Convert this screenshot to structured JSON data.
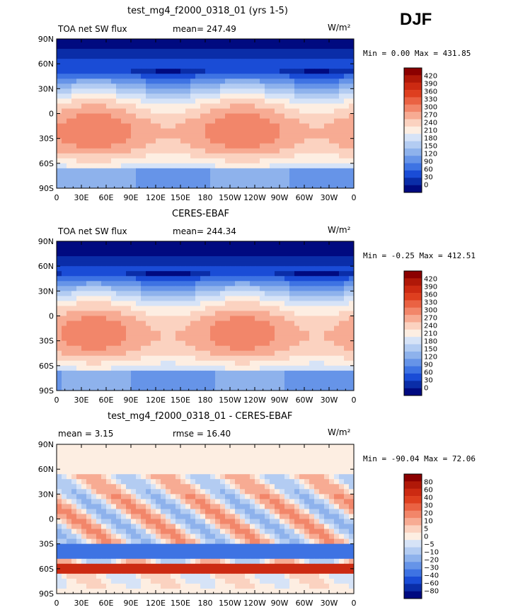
{
  "header": {
    "season": "DJF"
  },
  "panels": [
    {
      "title": "test_mg4_f2000_0318_01 (yrs 1-5)",
      "variable": "TOA net SW flux",
      "stat1": "mean= 247.49",
      "stat2": "",
      "units": "W/m²",
      "minmax": "Min =    0.00 Max = 431.85"
    },
    {
      "title": "CERES-EBAF",
      "variable": "TOA net SW flux",
      "stat1": "mean= 244.34",
      "stat2": "",
      "units": "W/m²",
      "minmax": "Min =  -0.25 Max = 412.51"
    },
    {
      "title": "test_mg4_f2000_0318_01 - CERES-EBAF",
      "variable": "",
      "stat1": "mean =    3.15",
      "stat2": "rmse =   16.40",
      "units": "W/m²",
      "minmax": "Min = -90.04 Max =  72.06"
    }
  ],
  "chart_data": [
    {
      "type": "heatmap",
      "title": "test_mg4_f2000_0318_01 (yrs 1-5)",
      "x_ticks": [
        "0",
        "30E",
        "60E",
        "90E",
        "120E",
        "150E",
        "180",
        "150W",
        "120W",
        "90W",
        "60W",
        "30W",
        "0"
      ],
      "y_ticks": [
        "90N",
        "60N",
        "30N",
        "0",
        "30S",
        "60S",
        "90S"
      ],
      "colorbar": {
        "labels": [
          "420",
          "390",
          "360",
          "330",
          "300",
          "270",
          "240",
          "210",
          "180",
          "150",
          "120",
          "90",
          "60",
          "30",
          "0"
        ],
        "colors": [
          "#8b0000",
          "#b01808",
          "#cc2a12",
          "#de3f1f",
          "#ea6243",
          "#f2866a",
          "#f7ab93",
          "#fbd2c0",
          "#fdeee2",
          "#d6e3f7",
          "#b3ccf2",
          "#8eb2ec",
          "#6694e8",
          "#3e73e3",
          "#1a4cd6",
          "#0a2da8",
          "#000a80"
        ]
      },
      "min": 0.0,
      "max": 431.85,
      "mean": 247.49,
      "units": "W/m2"
    },
    {
      "type": "heatmap",
      "title": "CERES-EBAF",
      "x_ticks": [
        "0",
        "30E",
        "60E",
        "90E",
        "120E",
        "150E",
        "180",
        "150W",
        "120W",
        "90W",
        "60W",
        "30W",
        "0"
      ],
      "y_ticks": [
        "90N",
        "60N",
        "30N",
        "0",
        "30S",
        "60S",
        "90S"
      ],
      "colorbar": {
        "labels": [
          "420",
          "390",
          "360",
          "330",
          "300",
          "270",
          "240",
          "210",
          "180",
          "150",
          "120",
          "90",
          "60",
          "30",
          "0"
        ],
        "colors": [
          "#8b0000",
          "#b01808",
          "#cc2a12",
          "#de3f1f",
          "#ea6243",
          "#f2866a",
          "#f7ab93",
          "#fbd2c0",
          "#fdeee2",
          "#d6e3f7",
          "#b3ccf2",
          "#8eb2ec",
          "#6694e8",
          "#3e73e3",
          "#1a4cd6",
          "#0a2da8",
          "#000a80"
        ]
      },
      "min": -0.25,
      "max": 412.51,
      "mean": 244.34,
      "units": "W/m2"
    },
    {
      "type": "heatmap",
      "title": "test_mg4_f2000_0318_01 - CERES-EBAF",
      "x_ticks": [
        "0",
        "30E",
        "60E",
        "90E",
        "120E",
        "150E",
        "180",
        "150W",
        "120W",
        "90W",
        "60W",
        "30W",
        "0"
      ],
      "y_ticks": [
        "90N",
        "60N",
        "30N",
        "0",
        "30S",
        "60S",
        "90S"
      ],
      "colorbar": {
        "labels": [
          "80",
          "60",
          "40",
          "30",
          "20",
          "10",
          "5",
          "0",
          "−5",
          "−10",
          "−20",
          "−30",
          "−40",
          "−60",
          "−80"
        ],
        "colors": [
          "#8b0000",
          "#b01808",
          "#cc2a12",
          "#de3f1f",
          "#ea6243",
          "#f2866a",
          "#f7ab93",
          "#fbd2c0",
          "#fdeee2",
          "#d6e3f7",
          "#b3ccf2",
          "#8eb2ec",
          "#6694e8",
          "#3e73e3",
          "#1a4cd6",
          "#0a2da8",
          "#000a80"
        ]
      },
      "min": -90.04,
      "max": 72.06,
      "mean": 3.15,
      "rmse": 16.4,
      "units": "W/m2"
    }
  ]
}
